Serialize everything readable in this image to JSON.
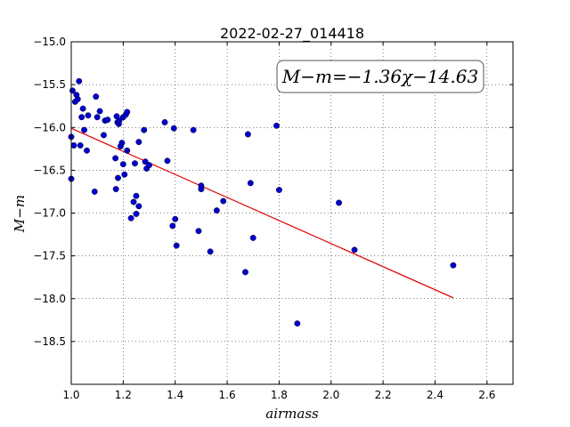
{
  "chart_data": {
    "type": "scatter",
    "title": "2022-02-27_014418",
    "xlabel": "airmass",
    "ylabel": "M−m",
    "xlim": [
      1.0,
      2.7
    ],
    "ylim": [
      -19.0,
      -15.0
    ],
    "y_inverted": true,
    "grid": true,
    "xticks": [
      1.0,
      1.2,
      1.4,
      1.6,
      1.8,
      2.0,
      2.2,
      2.4,
      2.6
    ],
    "xtick_labels": [
      "1.0",
      "1.2",
      "1.4",
      "1.6",
      "1.8",
      "2.0",
      "2.2",
      "2.4",
      "2.6"
    ],
    "yticks": [
      -15.0,
      -15.5,
      -16.0,
      -16.5,
      -17.0,
      -17.5,
      -18.0,
      -18.5
    ],
    "ytick_labels": [
      "−15.0",
      "−15.5",
      "−16.0",
      "−16.5",
      "−17.0",
      "−17.5",
      "−18.0",
      "−18.5"
    ],
    "fit_label": "M−m=−1.36χ−14.63",
    "fit_label_position": "top-right",
    "colors": {
      "points": "#0000cc",
      "fit": "#dd0000"
    },
    "fit_line": {
      "x": [
        1.0,
        2.47
      ],
      "y": [
        -16.01,
        -17.99
      ]
    },
    "points": {
      "x": [
        1.0,
        1.0,
        1.005,
        1.01,
        1.015,
        1.02,
        1.025,
        1.03,
        1.035,
        1.04,
        1.045,
        1.05,
        1.06,
        1.065,
        1.09,
        1.095,
        1.1,
        1.11,
        1.125,
        1.13,
        1.14,
        1.17,
        1.172,
        1.175,
        1.178,
        1.18,
        1.183,
        1.185,
        1.19,
        1.195,
        1.2,
        1.2,
        1.205,
        1.21,
        1.215,
        1.215,
        1.23,
        1.24,
        1.245,
        1.25,
        1.25,
        1.26,
        1.26,
        1.28,
        1.285,
        1.29,
        1.3,
        1.36,
        1.37,
        1.39,
        1.395,
        1.4,
        1.405,
        1.47,
        1.49,
        1.5,
        1.5,
        1.535,
        1.56,
        1.585,
        1.67,
        1.68,
        1.69,
        1.7,
        1.79,
        1.8,
        1.87,
        2.03,
        2.09,
        2.47
      ],
      "y": [
        -16.11,
        -16.6,
        -15.57,
        -16.21,
        -15.7,
        -15.62,
        -15.67,
        -15.46,
        -16.21,
        -15.88,
        -15.78,
        -16.03,
        -16.27,
        -15.86,
        -16.75,
        -15.64,
        -15.88,
        -15.81,
        -16.09,
        -15.92,
        -15.91,
        -16.36,
        -16.72,
        -15.87,
        -15.94,
        -16.59,
        -15.96,
        -15.92,
        -16.22,
        -16.18,
        -15.88,
        -16.43,
        -16.55,
        -15.85,
        -15.82,
        -16.27,
        -17.06,
        -16.87,
        -16.42,
        -16.8,
        -17.01,
        -16.17,
        -16.92,
        -16.03,
        -16.4,
        -16.48,
        -16.44,
        -15.94,
        -16.39,
        -17.15,
        -16.01,
        -17.07,
        -17.38,
        -16.03,
        -17.21,
        -16.68,
        -16.72,
        -17.45,
        -16.97,
        -16.86,
        -17.69,
        -16.08,
        -16.65,
        -17.29,
        -15.98,
        -16.73,
        -18.29,
        -16.88,
        -17.43,
        -17.61
      ]
    }
  }
}
